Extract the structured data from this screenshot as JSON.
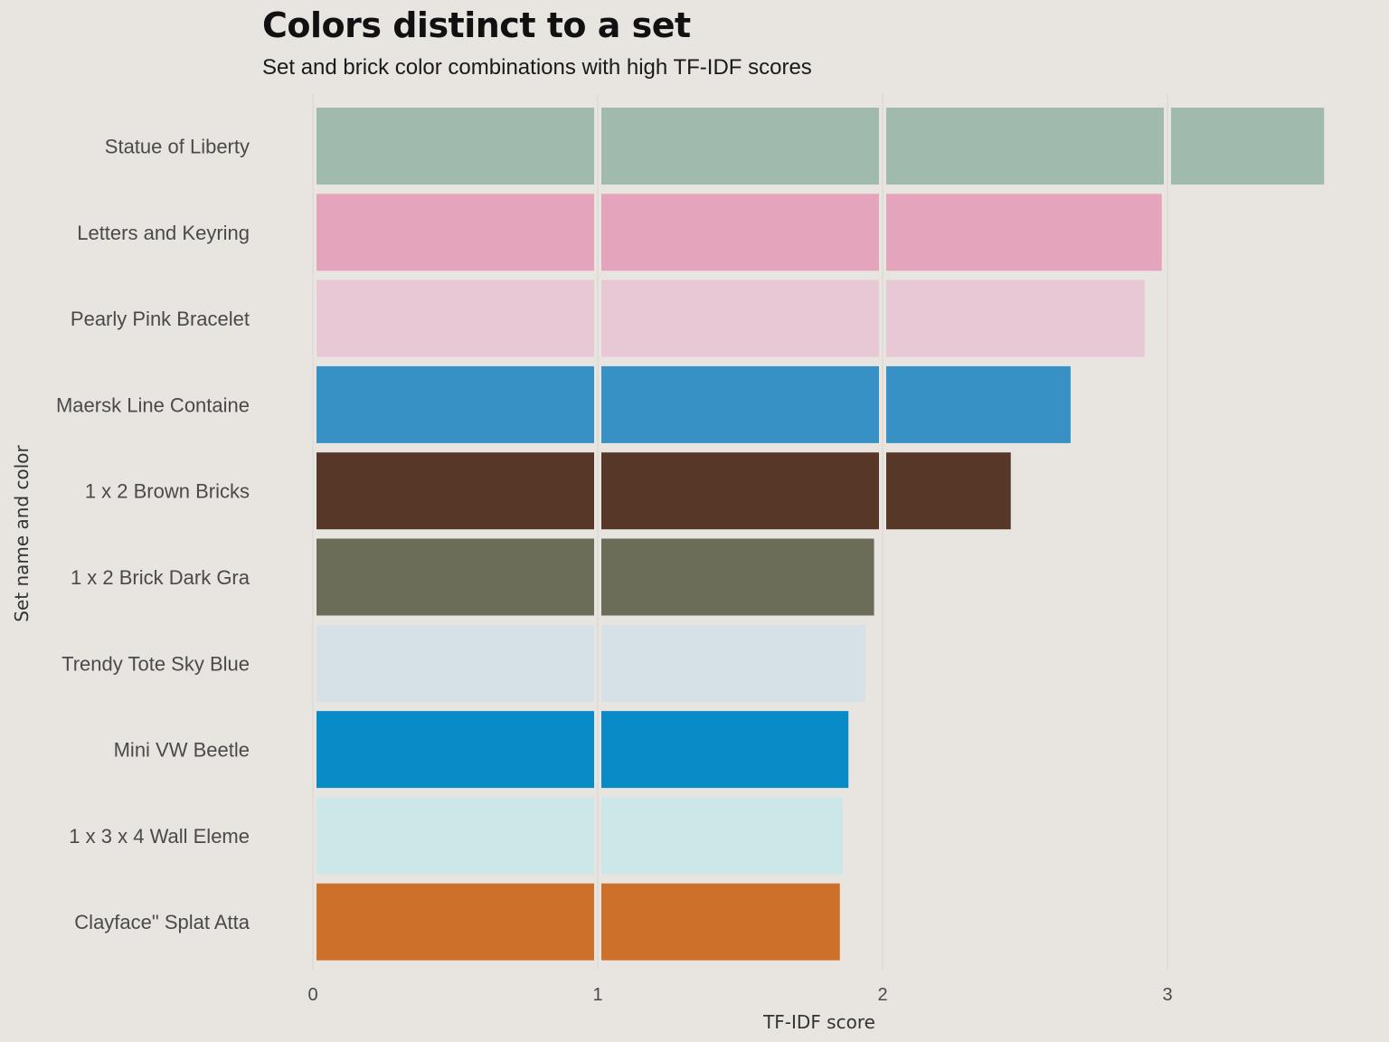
{
  "chart_data": {
    "type": "bar",
    "orientation": "horizontal",
    "title": "Colors distinct to a set",
    "subtitle": "Set and brick color combinations with high TF-IDF scores",
    "xlabel": "TF-IDF score",
    "ylabel": "Set name and color",
    "xlim": [
      0,
      3.6
    ],
    "xticks": [
      "0",
      "1",
      "2",
      "3"
    ],
    "grid": "vertical-major",
    "legend": "none",
    "segment_breaks": "white gap at each whole number",
    "categories": [
      "Statue of Liberty",
      "Letters and Keyring",
      "Pearly Pink Bracelet",
      "Maersk Line Containe",
      "1 x 2 Brown Bricks",
      "1 x 2 Brick Dark Gra",
      "Trendy Tote Sky Blue",
      "Mini VW Beetle",
      "1 x 3 x 4 Wall Eleme",
      "Clayface\" Splat Atta"
    ],
    "values": [
      3.55,
      2.98,
      2.92,
      2.66,
      2.45,
      1.97,
      1.94,
      1.88,
      1.86,
      1.85
    ],
    "colors": [
      "#a0bbad",
      "#e4a4bc",
      "#e7c8d4",
      "#3791c4",
      "#573828",
      "#6c6d59",
      "#d6e0e7",
      "#088bc7",
      "#cbe7e7",
      "#cc702a"
    ]
  }
}
